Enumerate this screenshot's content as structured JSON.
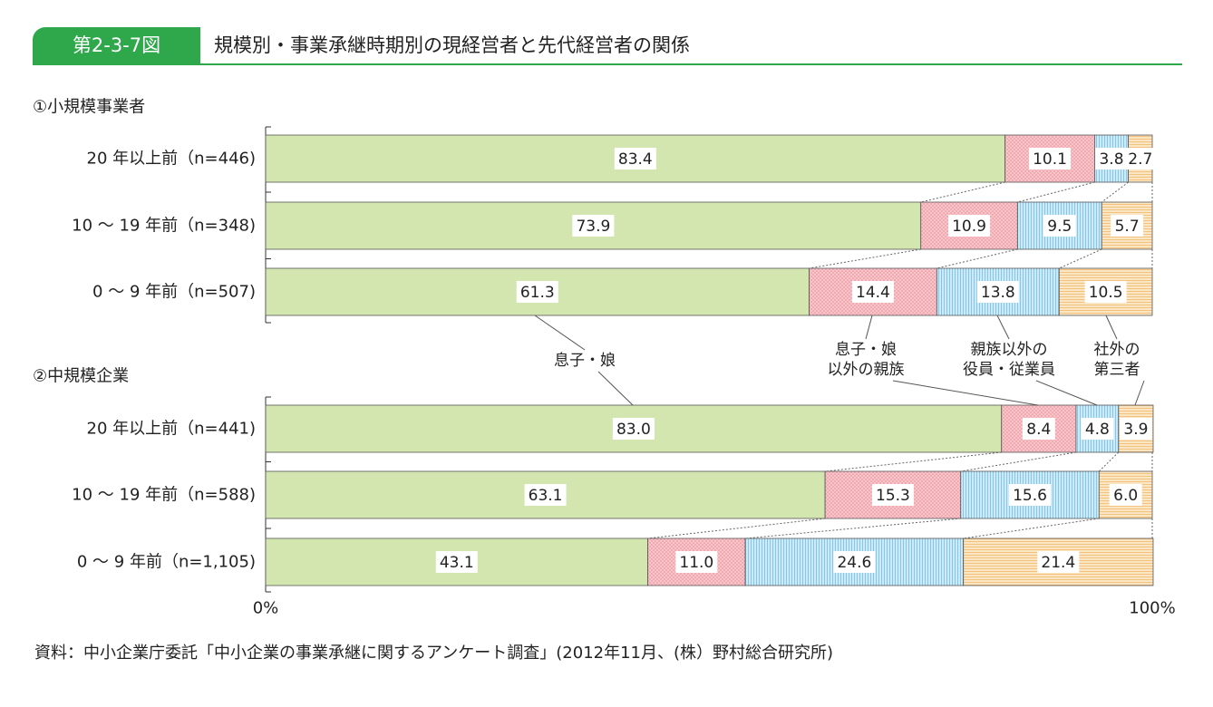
{
  "header": {
    "figure_number": "第2-3-7図",
    "title": "規模別・事業承継時期別の現経営者と先代経営者の関係"
  },
  "source": "資料：中小企業庁委託「中小企業の事業承継に関するアンケート調査」(2012年11月、(株）野村総合研究所)",
  "colors": {
    "son_daughter": "#d3e6b0",
    "other_relatives": "#f2aab0",
    "employees": "#b5dcf4",
    "third_party": "#f9ddb0",
    "header_green": "#2ea84a"
  },
  "chart_data": {
    "type": "bar",
    "orientation": "horizontal",
    "stacked": "percent",
    "xlim": [
      0,
      100
    ],
    "x_tick_labels": [
      "0%",
      "100%"
    ],
    "series_names": [
      "息子・娘",
      "息子・娘\n以外の親族",
      "親族以外の\n役員・従業員",
      "社外の\n第三者"
    ],
    "panels": [
      {
        "title": "①小規模事業者",
        "categories": [
          "20 年以上前（n=446)",
          "10 ～ 19 年前（n=348)",
          "0 ～ 9 年前（n=507)"
        ],
        "series": [
          {
            "values": [
              83.4,
              73.9,
              61.3
            ]
          },
          {
            "values": [
              10.1,
              10.9,
              14.4
            ]
          },
          {
            "values": [
              3.8,
              9.5,
              13.8
            ]
          },
          {
            "values": [
              2.7,
              5.7,
              10.5
            ]
          }
        ]
      },
      {
        "title": "②中規模企業",
        "categories": [
          "20 年以上前（n=441)",
          "10 ～ 19 年前（n=588)",
          "0 ～ 9 年前（n=1,105)"
        ],
        "series": [
          {
            "values": [
              83.0,
              63.1,
              43.1
            ]
          },
          {
            "values": [
              8.4,
              15.3,
              11.0
            ]
          },
          {
            "values": [
              4.8,
              15.6,
              24.6
            ]
          },
          {
            "values": [
              3.9,
              6.0,
              21.4
            ]
          }
        ]
      }
    ]
  }
}
